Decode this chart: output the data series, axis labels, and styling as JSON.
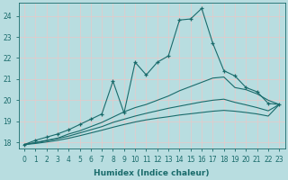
{
  "background_color": "#b8dde0",
  "grid_color": "#d4eef0",
  "line_color": "#1a6b6b",
  "xlabel": "Humidex (Indice chaleur)",
  "xlim": [
    -0.5,
    23.5
  ],
  "ylim": [
    17.7,
    24.6
  ],
  "yticks": [
    18,
    19,
    20,
    21,
    22,
    23,
    24
  ],
  "xticks": [
    0,
    1,
    2,
    3,
    4,
    5,
    6,
    7,
    8,
    9,
    10,
    11,
    12,
    13,
    14,
    15,
    16,
    17,
    18,
    19,
    20,
    21,
    22,
    23
  ],
  "series": [
    {
      "x": [
        0,
        1,
        2,
        3,
        4,
        5,
        6,
        7,
        8,
        9,
        10,
        11,
        12,
        13,
        14,
        15,
        16,
        17,
        18,
        19,
        20,
        21,
        22,
        23
      ],
      "y": [
        17.9,
        18.1,
        18.25,
        18.4,
        18.6,
        18.85,
        19.1,
        19.35,
        20.9,
        19.4,
        21.8,
        21.2,
        21.8,
        22.1,
        23.8,
        23.85,
        24.35,
        22.7,
        21.4,
        21.15,
        20.6,
        20.4,
        19.85,
        19.8
      ],
      "marker": "+"
    },
    {
      "x": [
        0,
        1,
        2,
        3,
        4,
        5,
        6,
        7,
        8,
        9,
        10,
        11,
        12,
        13,
        14,
        15,
        16,
        17,
        18,
        19,
        20,
        21,
        22,
        23
      ],
      "y": [
        17.9,
        18.0,
        18.1,
        18.2,
        18.4,
        18.55,
        18.75,
        18.95,
        19.2,
        19.45,
        19.65,
        19.8,
        20.0,
        20.2,
        20.45,
        20.65,
        20.85,
        21.05,
        21.1,
        20.6,
        20.5,
        20.3,
        20.0,
        19.8
      ],
      "marker": null
    },
    {
      "x": [
        0,
        1,
        2,
        3,
        4,
        5,
        6,
        7,
        8,
        9,
        10,
        11,
        12,
        13,
        14,
        15,
        16,
        17,
        18,
        19,
        20,
        21,
        22,
        23
      ],
      "y": [
        17.9,
        17.98,
        18.08,
        18.18,
        18.3,
        18.45,
        18.6,
        18.75,
        18.95,
        19.1,
        19.25,
        19.38,
        19.5,
        19.62,
        19.72,
        19.82,
        19.92,
        20.0,
        20.05,
        19.9,
        19.78,
        19.65,
        19.5,
        19.8
      ],
      "marker": null
    },
    {
      "x": [
        0,
        1,
        2,
        3,
        4,
        5,
        6,
        7,
        8,
        9,
        10,
        11,
        12,
        13,
        14,
        15,
        16,
        17,
        18,
        19,
        20,
        21,
        22,
        23
      ],
      "y": [
        17.9,
        17.95,
        18.02,
        18.1,
        18.2,
        18.32,
        18.45,
        18.58,
        18.72,
        18.85,
        18.97,
        19.07,
        19.15,
        19.22,
        19.3,
        19.36,
        19.42,
        19.48,
        19.52,
        19.48,
        19.42,
        19.35,
        19.25,
        19.8
      ],
      "marker": null
    }
  ]
}
